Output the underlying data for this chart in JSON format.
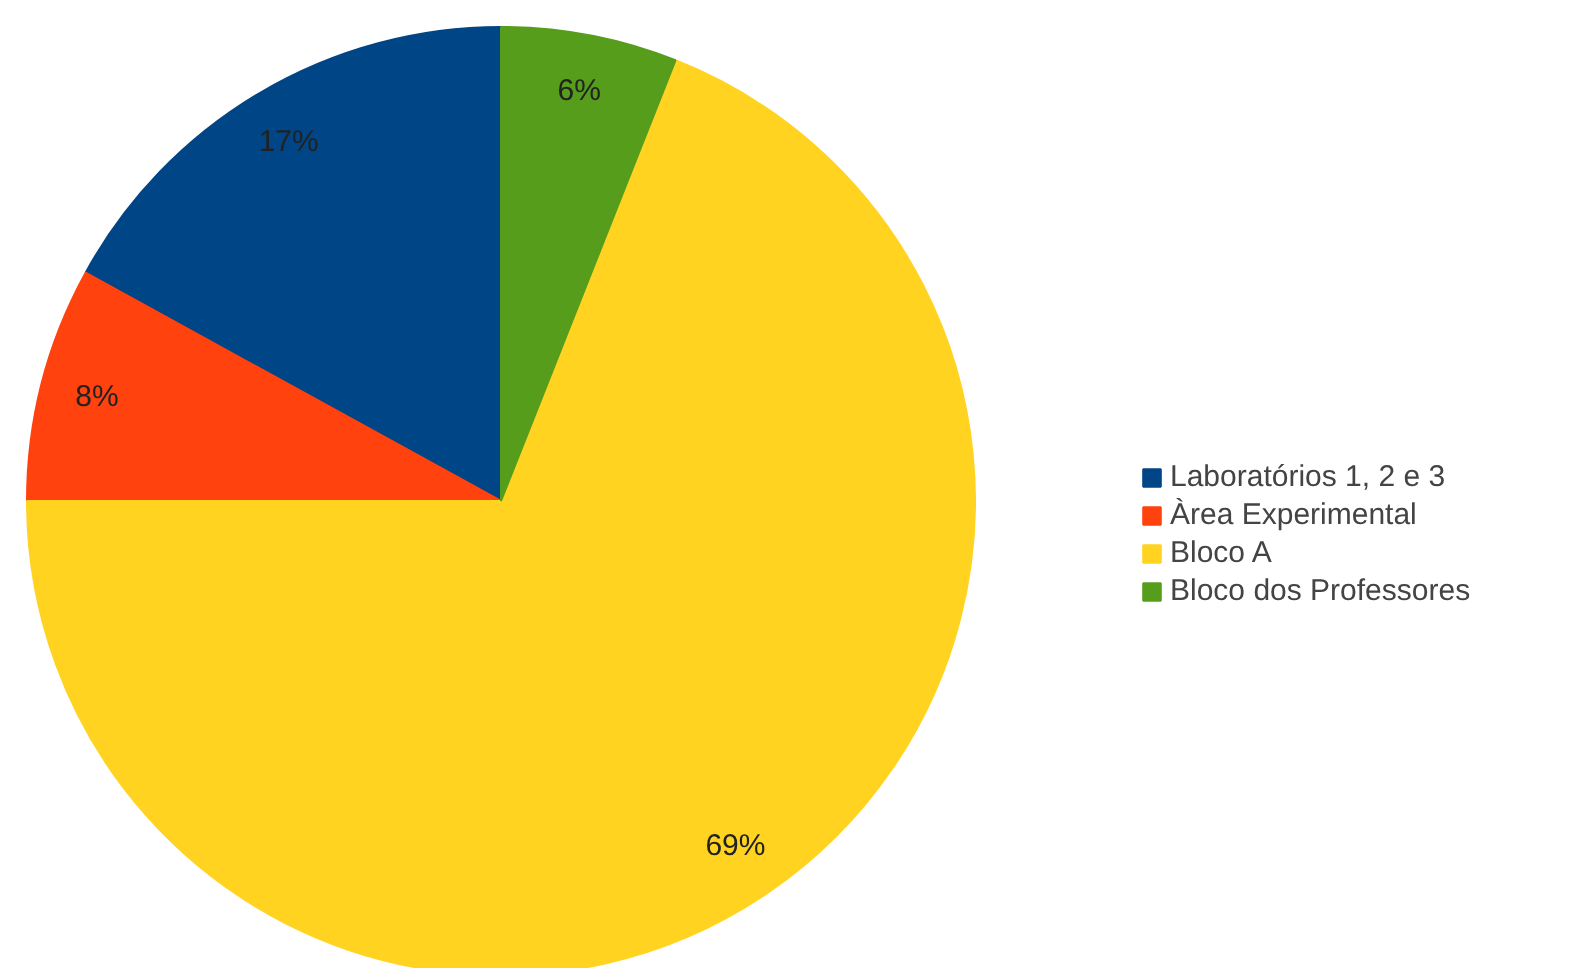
{
  "chart_data": {
    "type": "pie",
    "categories": [
      "Laboratórios 1, 2 e 3",
      "Àrea Experimental",
      "Bloco A",
      "Bloco dos Professores"
    ],
    "values": [
      17,
      8,
      69,
      6
    ],
    "colors": [
      "#004586",
      "#ff420e",
      "#ffd320",
      "#579d1c"
    ],
    "value_labels": [
      "17%",
      "8%",
      "69%",
      "6%"
    ],
    "legend": "right"
  }
}
